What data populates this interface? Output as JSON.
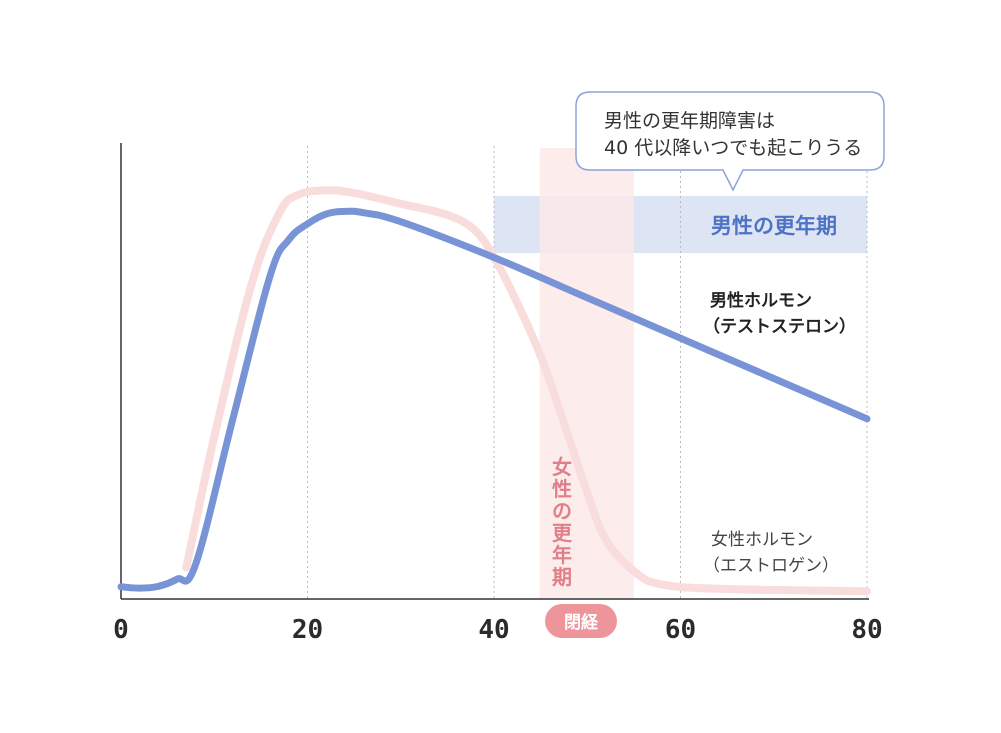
{
  "colors": {
    "male": "#7893d6",
    "female": "#f9dcdc",
    "male_band": "#dde4f4",
    "female_band": "#fde9e9",
    "male_band_label": "#4d72c6",
    "female_band_label": "#e07f87",
    "badge": "#ee959b",
    "callout_border": "#8da2d6",
    "axis": "#333333",
    "grid": "#bbbbbb"
  },
  "callout": {
    "line1": "男性の更年期障害は",
    "line2": "40 代以降いつでも起こりうる"
  },
  "bands": {
    "male_label": "男性の更年期",
    "female_label_chars": [
      "女",
      "性",
      "の",
      "更",
      "年",
      "期"
    ]
  },
  "badge": {
    "label": "閉経"
  },
  "labels": {
    "male_hormone_line1": "男性ホルモン",
    "male_hormone_line2": "（テストステロン）",
    "female_hormone_line1": "女性ホルモン",
    "female_hormone_line2": "（エストロゲン）"
  },
  "chart_data": {
    "type": "line",
    "xlim": [
      0,
      80
    ],
    "ylim": [
      0,
      100
    ],
    "grid": "vertical dotted",
    "x_ticks": [
      0,
      20,
      40,
      60,
      80
    ],
    "x_tick_labels": [
      "0",
      "20",
      "40",
      "60",
      "80"
    ],
    "male_band": {
      "x": [
        40,
        80
      ]
    },
    "female_band": {
      "x": [
        45,
        55
      ]
    },
    "series": [
      {
        "x": [
          0,
          2,
          4,
          6,
          8,
          12,
          16,
          18,
          20,
          22,
          24,
          26,
          30,
          40,
          50,
          60,
          70,
          80
        ],
        "values": [
          2.5,
          2.2,
          2.6,
          4.2,
          7.5,
          40,
          72,
          80,
          83.5,
          85.7,
          86.3,
          86,
          84,
          76,
          67,
          58,
          49,
          40
        ]
      },
      {
        "x": [
          7,
          10,
          14,
          17,
          19,
          22,
          25,
          30,
          35,
          38,
          40,
          42,
          45,
          48,
          50,
          52,
          55,
          58,
          65,
          80
        ],
        "values": [
          6.8,
          36,
          70,
          86,
          90,
          91,
          90.4,
          88,
          85.5,
          82,
          76,
          68,
          54,
          36,
          23.5,
          13,
          6,
          3,
          2,
          1.5
        ]
      }
    ]
  }
}
